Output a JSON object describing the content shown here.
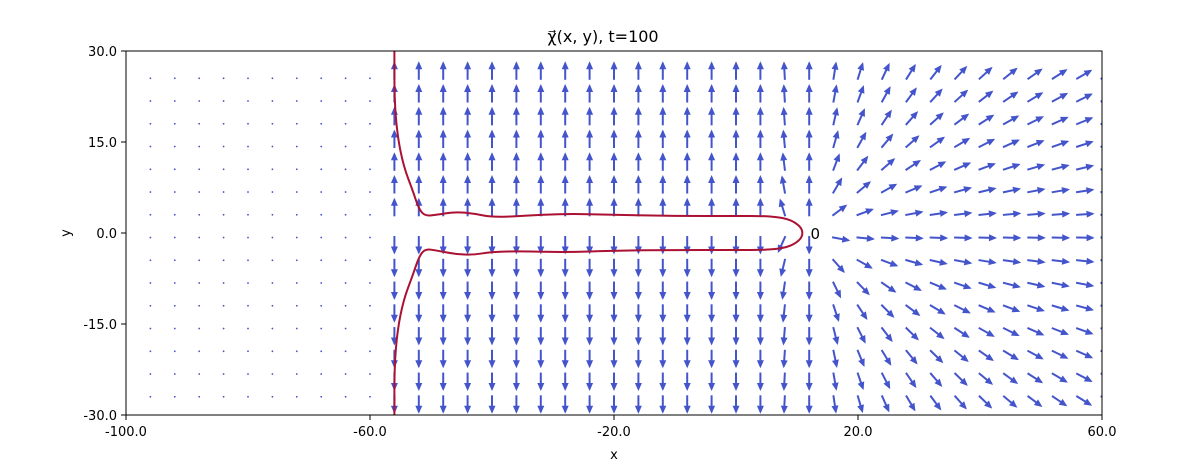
{
  "chart_data": {
    "type": "quiver",
    "title": "χ⃗(x, y), t=100",
    "xlabel": "x",
    "ylabel": "y",
    "xlim": [
      -100,
      60
    ],
    "ylim": [
      -30,
      30
    ],
    "x_ticks": [
      -100,
      -60,
      -20,
      20,
      60
    ],
    "x_tick_labels": [
      "-100.0",
      "-60.0",
      "-20.0",
      "20.0",
      "60.0"
    ],
    "y_ticks": [
      -30,
      -15,
      0,
      15,
      30
    ],
    "y_tick_labels": [
      "-30.0",
      "-15.0",
      "0.0",
      "15.0",
      "30.0"
    ],
    "grid": false,
    "vector_field": {
      "color": "#4455cc",
      "x_start": -96,
      "x_step": 4,
      "x_count": 40,
      "y_start": -27,
      "y_step": 3.75,
      "y_count": 15,
      "null_region_x_max": -58,
      "source_point": [
        12,
        0
      ]
    },
    "contour": {
      "color": "#aa1133",
      "points": [
        [
          -56,
          30
        ],
        [
          -56,
          22
        ],
        [
          -55.5,
          16
        ],
        [
          -54.5,
          11
        ],
        [
          -53,
          7
        ],
        [
          -52,
          4
        ],
        [
          -51,
          2.8
        ],
        [
          -49,
          3.0
        ],
        [
          -46,
          3.5
        ],
        [
          -43,
          3.2
        ],
        [
          -40,
          2.6
        ],
        [
          -35,
          2.8
        ],
        [
          -28,
          3.2
        ],
        [
          -20,
          3.0
        ],
        [
          -10,
          2.8
        ],
        [
          0,
          2.8
        ],
        [
          5,
          2.8
        ],
        [
          8.5,
          2.4
        ],
        [
          10.5,
          1.2
        ],
        [
          11,
          0
        ],
        [
          10.5,
          -1.2
        ],
        [
          8.5,
          -2.4
        ],
        [
          5,
          -2.8
        ],
        [
          0,
          -2.8
        ],
        [
          -10,
          -2.8
        ],
        [
          -20,
          -2.9
        ],
        [
          -28,
          -3.2
        ],
        [
          -35,
          -3.0
        ],
        [
          -40,
          -3.1
        ],
        [
          -43,
          -3.6
        ],
        [
          -46,
          -3.5
        ],
        [
          -49,
          -2.9
        ],
        [
          -51,
          -2.6
        ],
        [
          -52,
          -4
        ],
        [
          -53,
          -7
        ],
        [
          -54.5,
          -11
        ],
        [
          -55.5,
          -16
        ],
        [
          -56,
          -22
        ],
        [
          -56,
          -30
        ]
      ]
    },
    "annotations": [
      {
        "text": "0",
        "x": 13,
        "y": 0
      }
    ]
  }
}
